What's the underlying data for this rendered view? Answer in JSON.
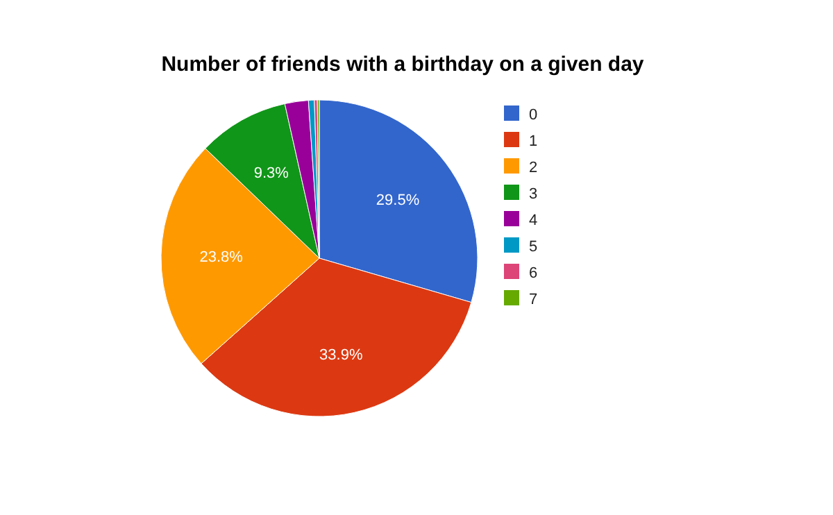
{
  "chart_data": {
    "type": "pie",
    "title": "Number of friends with a birthday on a given day",
    "categories": [
      "0",
      "1",
      "2",
      "3",
      "4",
      "5",
      "6",
      "7"
    ],
    "values": [
      29.5,
      33.9,
      23.8,
      9.3,
      2.4,
      0.6,
      0.3,
      0.2
    ],
    "colors": [
      "#3366cc",
      "#dc3912",
      "#ff9900",
      "#109618",
      "#990099",
      "#0099c6",
      "#dd4477",
      "#66aa00"
    ],
    "value_labels": [
      "29.5%",
      "33.9%",
      "23.8%",
      "9.3%",
      null,
      null,
      null,
      null
    ],
    "legend": "right"
  }
}
